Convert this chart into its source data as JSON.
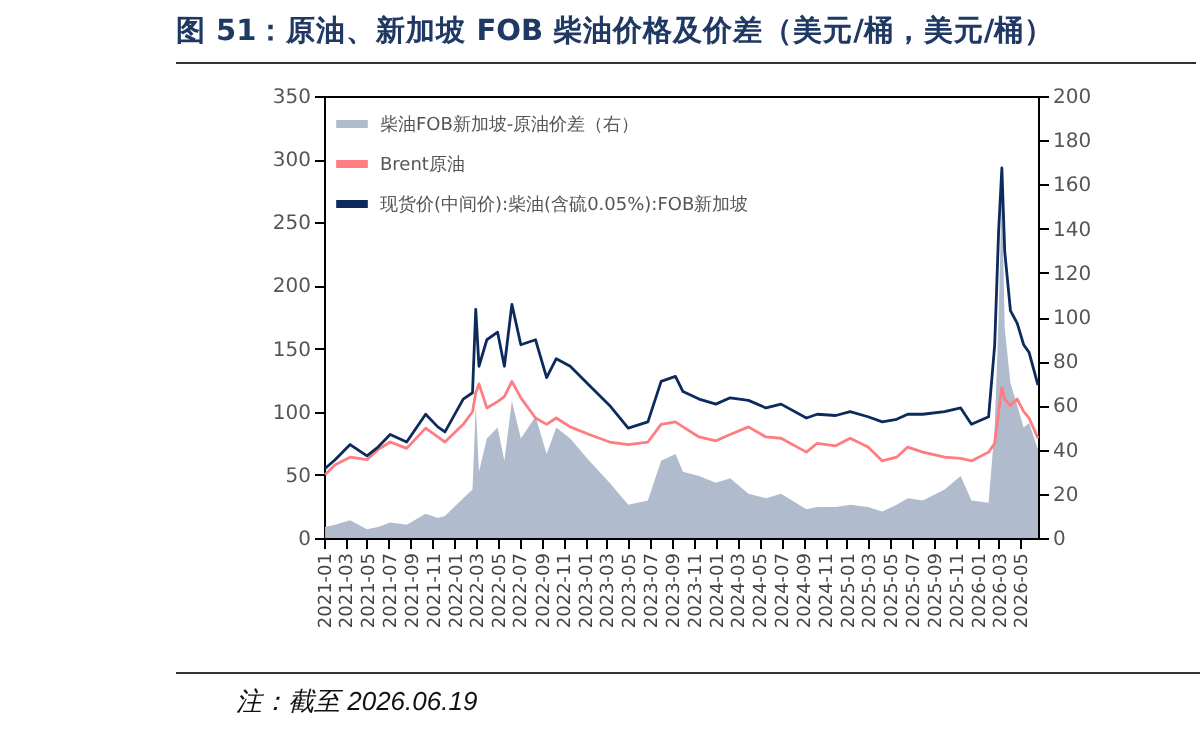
{
  "chart_data": {
    "type": "line",
    "title": "图 51：原油、新加坡 FOB 柴油价格及价差（美元/桶，美元/桶）",
    "annotations": [
      "注：截至 2026.06.19"
    ],
    "x": [
      "2021-01-04",
      "2021-02-01",
      "2021-03-15",
      "2021-05-01",
      "2021-06-01",
      "2021-07-05",
      "2021-08-20",
      "2021-10-12",
      "2021-11-15",
      "2021-12-05",
      "2022-01-25",
      "2022-02-20",
      "2022-03-01",
      "2022-03-10",
      "2022-04-01",
      "2022-05-01",
      "2022-05-20",
      "2022-06-10",
      "2022-07-05",
      "2022-08-15",
      "2022-09-15",
      "2022-10-12",
      "2022-11-20",
      "2023-01-12",
      "2023-03-10",
      "2023-05-01",
      "2023-06-25",
      "2023-08-01",
      "2023-09-10",
      "2023-10-01",
      "2023-11-15",
      "2024-01-01",
      "2024-02-10",
      "2024-04-01",
      "2024-05-20",
      "2024-07-01",
      "2024-09-10",
      "2024-10-10",
      "2024-12-01",
      "2025-01-10",
      "2025-03-01",
      "2025-04-10",
      "2025-05-20",
      "2025-06-20",
      "2025-08-01",
      "2025-10-01",
      "2025-11-15",
      "2025-12-15",
      "2026-02-01",
      "2026-02-18",
      "2026-03-01",
      "2026-03-10",
      "2026-03-18",
      "2026-04-03",
      "2026-04-22",
      "2026-05-10",
      "2026-05-25",
      "2026-06-19"
    ],
    "series": [
      {
        "name": "柴油FOB新加坡-原油价差（右）",
        "type": "area",
        "axis": "y2",
        "color": "#b0bccd",
        "values": [
          5,
          6,
          8,
          4,
          5,
          7,
          6,
          11,
          9,
          10,
          18,
          22,
          60,
          30,
          45,
          50,
          35,
          62,
          45,
          55,
          38,
          50,
          45,
          35,
          25,
          15,
          17,
          35,
          38,
          30,
          28,
          25,
          27,
          20,
          18,
          20,
          13,
          14,
          14,
          15,
          14,
          12,
          15,
          18,
          17,
          22,
          28,
          17,
          16,
          50,
          100,
          160,
          95,
          70,
          60,
          50,
          52,
          40
        ]
      },
      {
        "name": "Brent原油",
        "color": "#ff7c80",
        "values": [
          50,
          58,
          64,
          62,
          70,
          76,
          71,
          87,
          80,
          76,
          90,
          100,
          115,
          122,
          103,
          108,
          112,
          124,
          111,
          95,
          90,
          95,
          88,
          82,
          76,
          74,
          76,
          90,
          92,
          88,
          80,
          77,
          82,
          88,
          80,
          79,
          68,
          75,
          73,
          79,
          72,
          61,
          64,
          72,
          68,
          64,
          63,
          61,
          68,
          75,
          100,
          119,
          110,
          105,
          110,
          100,
          95,
          79
        ]
      },
      {
        "name": "现货价(中间价):柴油(含硫0.05%):FOB新加坡",
        "color": "#0d2a5c",
        "values": [
          55,
          62,
          74,
          65,
          72,
          82,
          76,
          98,
          88,
          84,
          110,
          115,
          181,
          136,
          157,
          163,
          136,
          185,
          153,
          157,
          127,
          142,
          136,
          121,
          105,
          87,
          92,
          124,
          128,
          116,
          110,
          106,
          111,
          109,
          103,
          106,
          95,
          98,
          97,
          100,
          96,
          92,
          94,
          98,
          98,
          100,
          103,
          90,
          96,
          153,
          243,
          293,
          227,
          180,
          170,
          153,
          147,
          121
        ]
      }
    ],
    "xlim": [
      "2021-01-01",
      "2026-06-19"
    ],
    "xticks": [
      "2021-01",
      "2021-03",
      "2021-05",
      "2021-07",
      "2021-09",
      "2021-11",
      "2022-01",
      "2022-03",
      "2022-05",
      "2022-07",
      "2022-09",
      "2022-11",
      "2023-01",
      "2023-03",
      "2023-05",
      "2023-07",
      "2023-09",
      "2023-11",
      "2024-01",
      "2024-03",
      "2024-05",
      "2024-07",
      "2024-09",
      "2024-11",
      "2025-01",
      "2025-03",
      "2025-05",
      "2025-07",
      "2025-09",
      "2025-11",
      "2026-01",
      "2026-03",
      "2026-05"
    ],
    "ylim": [
      0,
      350
    ],
    "yticks": [
      0,
      50,
      100,
      150,
      200,
      250,
      300,
      350
    ],
    "y2lim": [
      0,
      200
    ],
    "y2ticks": [
      0,
      20,
      40,
      60,
      80,
      100,
      120,
      140,
      160,
      180,
      200
    ],
    "legend": "top left",
    "grid": false
  }
}
